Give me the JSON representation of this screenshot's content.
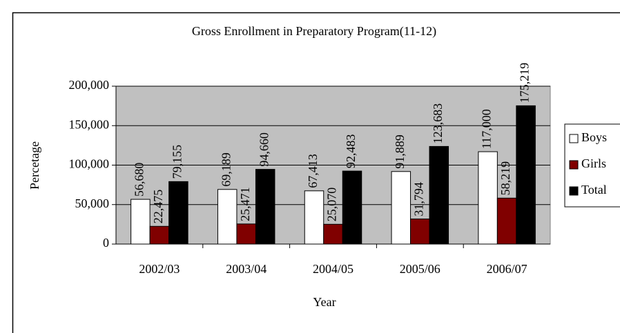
{
  "chart_data": {
    "type": "bar",
    "title": "Gross Enrollment in Preparatory Program(11-12)",
    "x_label": "Year",
    "y_label": "Percetage",
    "categories": [
      "2002/03",
      "2003/04",
      "2004/05",
      "2005/06",
      "2006/07"
    ],
    "series": [
      {
        "name": "Boys",
        "color": "#ffffff",
        "values": [
          56680,
          69189,
          67413,
          91889,
          117000
        ],
        "value_labels": [
          "56,680",
          "69,189",
          "67,413",
          "91,889",
          "117,000"
        ]
      },
      {
        "name": "Girls",
        "color": "#800000",
        "values": [
          22475,
          25471,
          25070,
          31794,
          58219
        ],
        "value_labels": [
          "22,475",
          "25,471",
          "25,070",
          "31,794",
          "58,219"
        ]
      },
      {
        "name": "Total",
        "color": "#000000",
        "values": [
          79155,
          94660,
          92483,
          123683,
          175219
        ],
        "value_labels": [
          "79,155",
          "94,660",
          "92,483",
          "123,683",
          "175,219"
        ]
      }
    ],
    "ylim": [
      0,
      200000
    ],
    "yticks": [
      0,
      {
        "value": 50000,
        "label": "50,000"
      },
      {
        "value": 100000,
        "label": "100,000"
      },
      {
        "value": 150000,
        "label": "150,000"
      },
      {
        "value": 200000,
        "label": "200,000"
      }
    ],
    "grid": true,
    "plot_background": "#c0c0c0",
    "legend": "right"
  }
}
